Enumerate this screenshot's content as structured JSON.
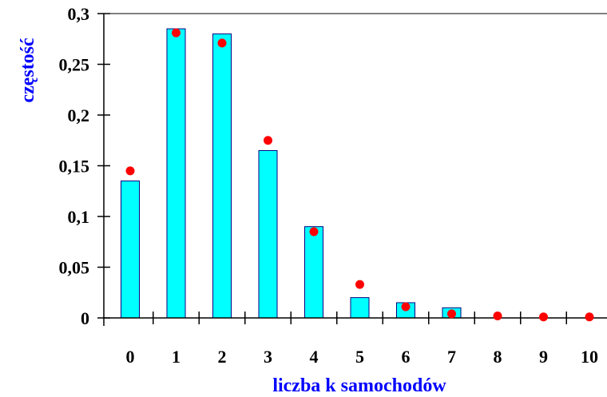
{
  "chart_data": {
    "type": "bar",
    "xlabel": "liczba k samochodów",
    "ylabel": "częstość",
    "categories": [
      "0",
      "1",
      "2",
      "3",
      "4",
      "5",
      "6",
      "7",
      "8",
      "9",
      "10"
    ],
    "series": [
      {
        "type": "bar",
        "values": [
          0.135,
          0.285,
          0.28,
          0.165,
          0.09,
          0.02,
          0.015,
          0.01,
          0,
          0,
          0
        ]
      },
      {
        "type": "scatter",
        "values": [
          0.145,
          0.281,
          0.271,
          0.175,
          0.085,
          0.033,
          0.011,
          0.004,
          0.002,
          0.001,
          0.001
        ]
      }
    ],
    "ylim": [
      0,
      0.3
    ],
    "yticks": [
      0,
      0.05,
      0.1,
      0.15,
      0.2,
      0.25,
      0.3
    ],
    "ytick_labels": [
      "0",
      "0,05",
      "0,1",
      "0,15",
      "0,2",
      "0,25",
      "0,3"
    ],
    "grid": false,
    "colors": {
      "bar_fill": "#00FFFF",
      "bar_stroke": "#000080",
      "point": "#FF0000",
      "axis_title": "#0000FF"
    }
  }
}
